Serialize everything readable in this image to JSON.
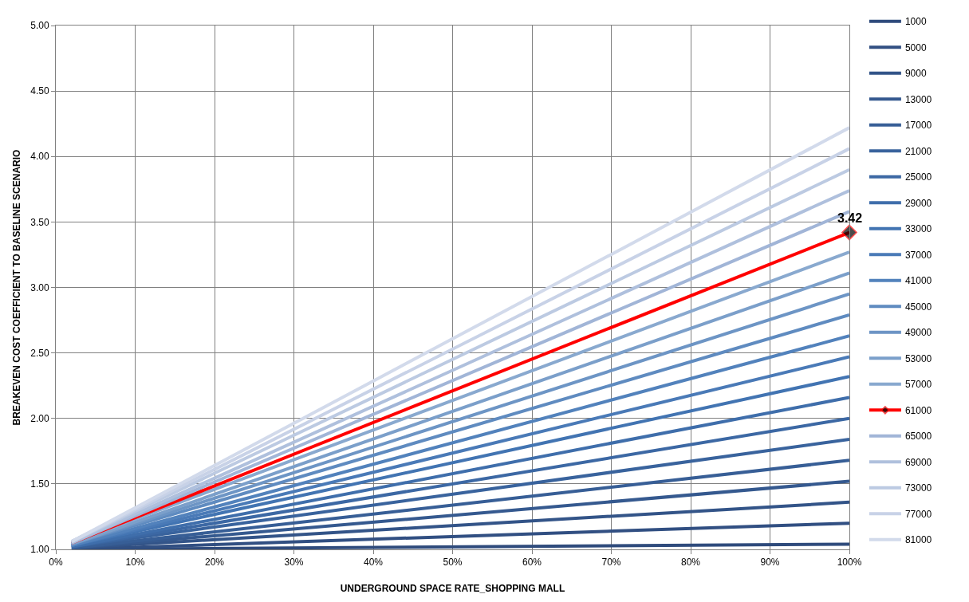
{
  "chart_data": {
    "type": "line",
    "xlabel": "UNDERGROUND SPACE RATE_SHOPPING MALL",
    "ylabel": "BREAKEVEN COST COEFFICIENT TO BASELINE SCENARIO",
    "x": [
      2,
      100
    ],
    "series": [
      {
        "name": "1000",
        "color": "#2f4b7c",
        "values": [
          1.0,
          1.04
        ]
      },
      {
        "name": "5000",
        "color": "#314f82",
        "values": [
          1.0,
          1.2
        ]
      },
      {
        "name": "9000",
        "color": "#335488",
        "values": [
          1.01,
          1.36
        ]
      },
      {
        "name": "13000",
        "color": "#35598f",
        "values": [
          1.01,
          1.52
        ]
      },
      {
        "name": "17000",
        "color": "#375e96",
        "values": [
          1.01,
          1.68
        ]
      },
      {
        "name": "21000",
        "color": "#39639d",
        "values": [
          1.02,
          1.84
        ]
      },
      {
        "name": "25000",
        "color": "#3c68a4",
        "values": [
          1.02,
          2.0
        ]
      },
      {
        "name": "29000",
        "color": "#3f6eab",
        "values": [
          1.02,
          2.16
        ]
      },
      {
        "name": "33000",
        "color": "#4274b2",
        "values": [
          1.03,
          2.32
        ]
      },
      {
        "name": "37000",
        "color": "#4a7ab7",
        "values": [
          1.03,
          2.47
        ]
      },
      {
        "name": "41000",
        "color": "#5282bc",
        "values": [
          1.03,
          2.63
        ]
      },
      {
        "name": "45000",
        "color": "#5f8bc0",
        "values": [
          1.04,
          2.79
        ]
      },
      {
        "name": "49000",
        "color": "#6d95c5",
        "values": [
          1.04,
          2.95
        ]
      },
      {
        "name": "53000",
        "color": "#7b9fca",
        "values": [
          1.04,
          3.11
        ]
      },
      {
        "name": "57000",
        "color": "#89a9cf",
        "values": [
          1.05,
          3.27
        ]
      },
      {
        "name": "61000",
        "color": "#ff0000",
        "values": [
          1.05,
          3.42
        ],
        "marker": "diamond"
      },
      {
        "name": "65000",
        "color": "#a1b5d7",
        "values": [
          1.05,
          3.58
        ]
      },
      {
        "name": "69000",
        "color": "#afc0dd",
        "values": [
          1.05,
          3.74
        ]
      },
      {
        "name": "73000",
        "color": "#bccae2",
        "values": [
          1.06,
          3.9
        ]
      },
      {
        "name": "77000",
        "color": "#c8d2e7",
        "values": [
          1.06,
          4.06
        ]
      },
      {
        "name": "81000",
        "color": "#d2daeb",
        "values": [
          1.06,
          4.22
        ]
      }
    ],
    "annotations": [
      {
        "text": "3.42",
        "x": 100,
        "y": 3.42
      }
    ],
    "xlim": [
      0,
      100
    ],
    "xticks": [
      {
        "value": 0,
        "label": "0%"
      },
      {
        "value": 10,
        "label": "10%"
      },
      {
        "value": 20,
        "label": "20%"
      },
      {
        "value": 30,
        "label": "30%"
      },
      {
        "value": 40,
        "label": "40%"
      },
      {
        "value": 50,
        "label": "50%"
      },
      {
        "value": 60,
        "label": "60%"
      },
      {
        "value": 70,
        "label": "70%"
      },
      {
        "value": 80,
        "label": "80%"
      },
      {
        "value": 90,
        "label": "90%"
      },
      {
        "value": 100,
        "label": "100%"
      }
    ],
    "ylim": [
      1,
      5
    ],
    "yticks": [
      {
        "value": 1,
        "label": "1.00"
      },
      {
        "value": 1.5,
        "label": "1.50"
      },
      {
        "value": 2,
        "label": "2.00"
      },
      {
        "value": 2.5,
        "label": "2.50"
      },
      {
        "value": 3,
        "label": "3.00"
      },
      {
        "value": 3.5,
        "label": "3.50"
      },
      {
        "value": 4,
        "label": "4.00"
      },
      {
        "value": 4.5,
        "label": "4.50"
      },
      {
        "value": 5,
        "label": "5.00"
      }
    ],
    "grid": true,
    "legend": "right",
    "marker": "none",
    "line_style": "solid"
  }
}
